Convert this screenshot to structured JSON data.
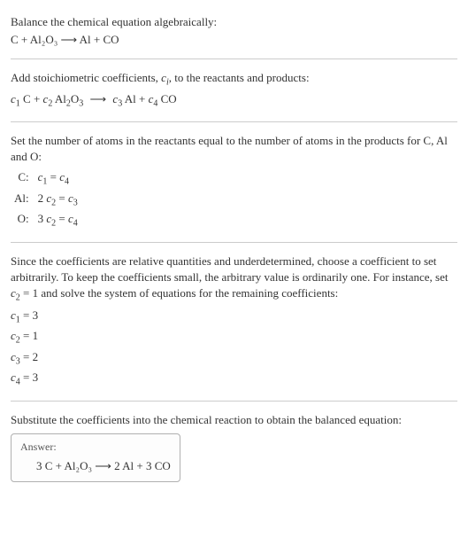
{
  "colors": {
    "text": "#333333",
    "divider": "#cccccc",
    "answer_border": "#b0b0b0",
    "answer_label": "#555555",
    "background": "#ffffff"
  },
  "fontsize": {
    "body": 13,
    "sub": 10,
    "answer_label": 12
  },
  "section1": {
    "intro": "Balance the chemical equation algebraically:",
    "equation": "C + Al₂O₃ ⟶ Al + CO"
  },
  "section2": {
    "intro_a": "Add stoichiometric coefficients, ",
    "ci": "c",
    "ci_sub": "i",
    "intro_b": ", to the reactants and products:",
    "eq": {
      "c1": "c",
      "c1_sub": "1",
      "t1": " C + ",
      "c2": "c",
      "c2_sub": "2",
      "t2": " Al",
      "al_sub": "2",
      "t3": "O",
      "o_sub": "3",
      "arrow": " ⟶ ",
      "c3": "c",
      "c3_sub": "3",
      "t4": " Al + ",
      "c4": "c",
      "c4_sub": "4",
      "t5": " CO"
    }
  },
  "section3": {
    "intro": "Set the number of atoms in the reactants equal to the number of atoms in the products for C, Al and O:",
    "rows": [
      {
        "element": "C:",
        "lhs_pre": "",
        "lhs_c": "c",
        "lhs_sub": "1",
        "lhs_post": "",
        "eq": " = ",
        "rhs_c": "c",
        "rhs_sub": "4"
      },
      {
        "element": "Al:",
        "lhs_pre": "2 ",
        "lhs_c": "c",
        "lhs_sub": "2",
        "lhs_post": "",
        "eq": " = ",
        "rhs_c": "c",
        "rhs_sub": "3"
      },
      {
        "element": "O:",
        "lhs_pre": "3 ",
        "lhs_c": "c",
        "lhs_sub": "2",
        "lhs_post": "",
        "eq": " = ",
        "rhs_c": "c",
        "rhs_sub": "4"
      }
    ]
  },
  "section4": {
    "intro_a": "Since the coefficients are relative quantities and underdetermined, choose a coefficient to set arbitrarily. To keep the coefficients small, the arbitrary value is ordinarily one. For instance, set ",
    "setc": "c",
    "setc_sub": "2",
    "intro_b": " = 1 and solve the system of equations for the remaining coefficients:",
    "coeffs": [
      {
        "c": "c",
        "sub": "1",
        "val": " = 3"
      },
      {
        "c": "c",
        "sub": "2",
        "val": " = 1"
      },
      {
        "c": "c",
        "sub": "3",
        "val": " = 2"
      },
      {
        "c": "c",
        "sub": "4",
        "val": " = 3"
      }
    ]
  },
  "section5": {
    "intro": "Substitute the coefficients into the chemical reaction to obtain the balanced equation:",
    "answer_label": "Answer:",
    "answer_eq": "3 C + Al₂O₃ ⟶ 2 Al + 3 CO"
  }
}
